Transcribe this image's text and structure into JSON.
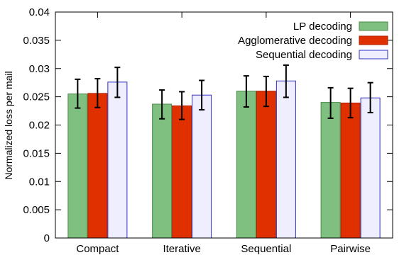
{
  "chart_data": {
    "type": "bar",
    "title": "",
    "xlabel": "",
    "ylabel": "Normalized loss per mail",
    "ylim": [
      0,
      0.04
    ],
    "yticks": [
      "0",
      "0.005",
      "0.01",
      "0.015",
      "0.02",
      "0.025",
      "0.03",
      "0.035",
      "0.04"
    ],
    "grid": false,
    "legend_position": "top-right",
    "categories": [
      "Compact",
      "Iterative",
      "Sequential",
      "Pairwise"
    ],
    "series": [
      {
        "name": "LP decoding",
        "color": "#7fbf7f",
        "values": [
          0.0255,
          0.0237,
          0.026,
          0.024
        ],
        "err_low": [
          0.023,
          0.0211,
          0.0232,
          0.0212
        ],
        "err_high": [
          0.0281,
          0.0262,
          0.0287,
          0.0266
        ]
      },
      {
        "name": "Agglomerative decoding",
        "color": "#e03000",
        "values": [
          0.0256,
          0.0234,
          0.026,
          0.0239
        ],
        "err_low": [
          0.0231,
          0.021,
          0.0233,
          0.0213
        ],
        "err_high": [
          0.0282,
          0.0259,
          0.0286,
          0.0265
        ]
      },
      {
        "name": "Sequential decoding",
        "color": "#eeeeff",
        "values": [
          0.0276,
          0.0253,
          0.0278,
          0.0248
        ],
        "err_low": [
          0.0249,
          0.0227,
          0.0249,
          0.0222
        ],
        "err_high": [
          0.0302,
          0.0279,
          0.0306,
          0.0275
        ]
      }
    ]
  }
}
